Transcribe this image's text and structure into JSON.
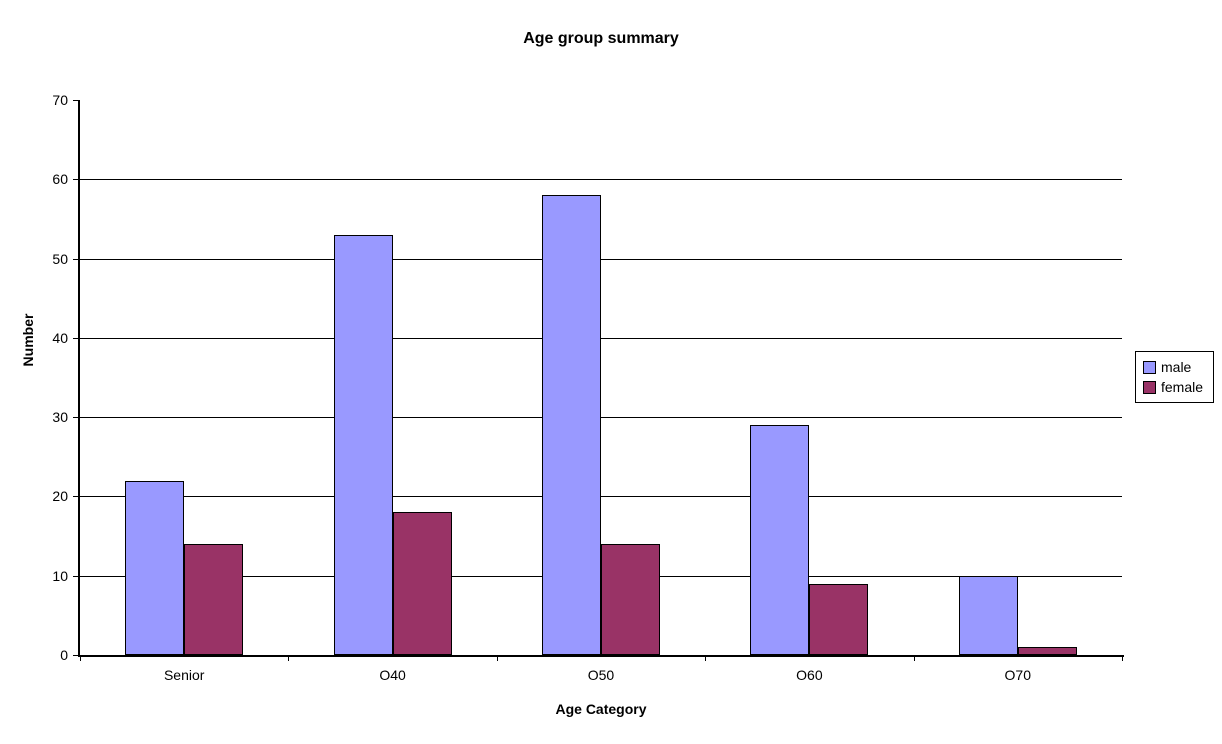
{
  "title": "Age group summary",
  "colors": {
    "male_series": "#9999FF",
    "female_series": "#993366",
    "axis": "#000000",
    "background": "#FFFFFF"
  },
  "chart_data": {
    "type": "bar",
    "title": "Age group summary",
    "xlabel": "Age Category",
    "ylabel": "Number",
    "categories": [
      "Senior",
      "O40",
      "O50",
      "O60",
      "O70"
    ],
    "series": [
      {
        "name": "male",
        "color": "#9999FF",
        "values": [
          22,
          53,
          58,
          29,
          10
        ]
      },
      {
        "name": "female",
        "color": "#993366",
        "values": [
          14,
          18,
          14,
          9,
          1
        ]
      }
    ],
    "ylim": [
      0,
      70
    ],
    "yticks": [
      0,
      10,
      20,
      30,
      40,
      50,
      60,
      70
    ],
    "grid": true,
    "gridline_values": [
      10,
      20,
      30,
      40,
      50,
      60
    ],
    "legend_position": "right"
  }
}
